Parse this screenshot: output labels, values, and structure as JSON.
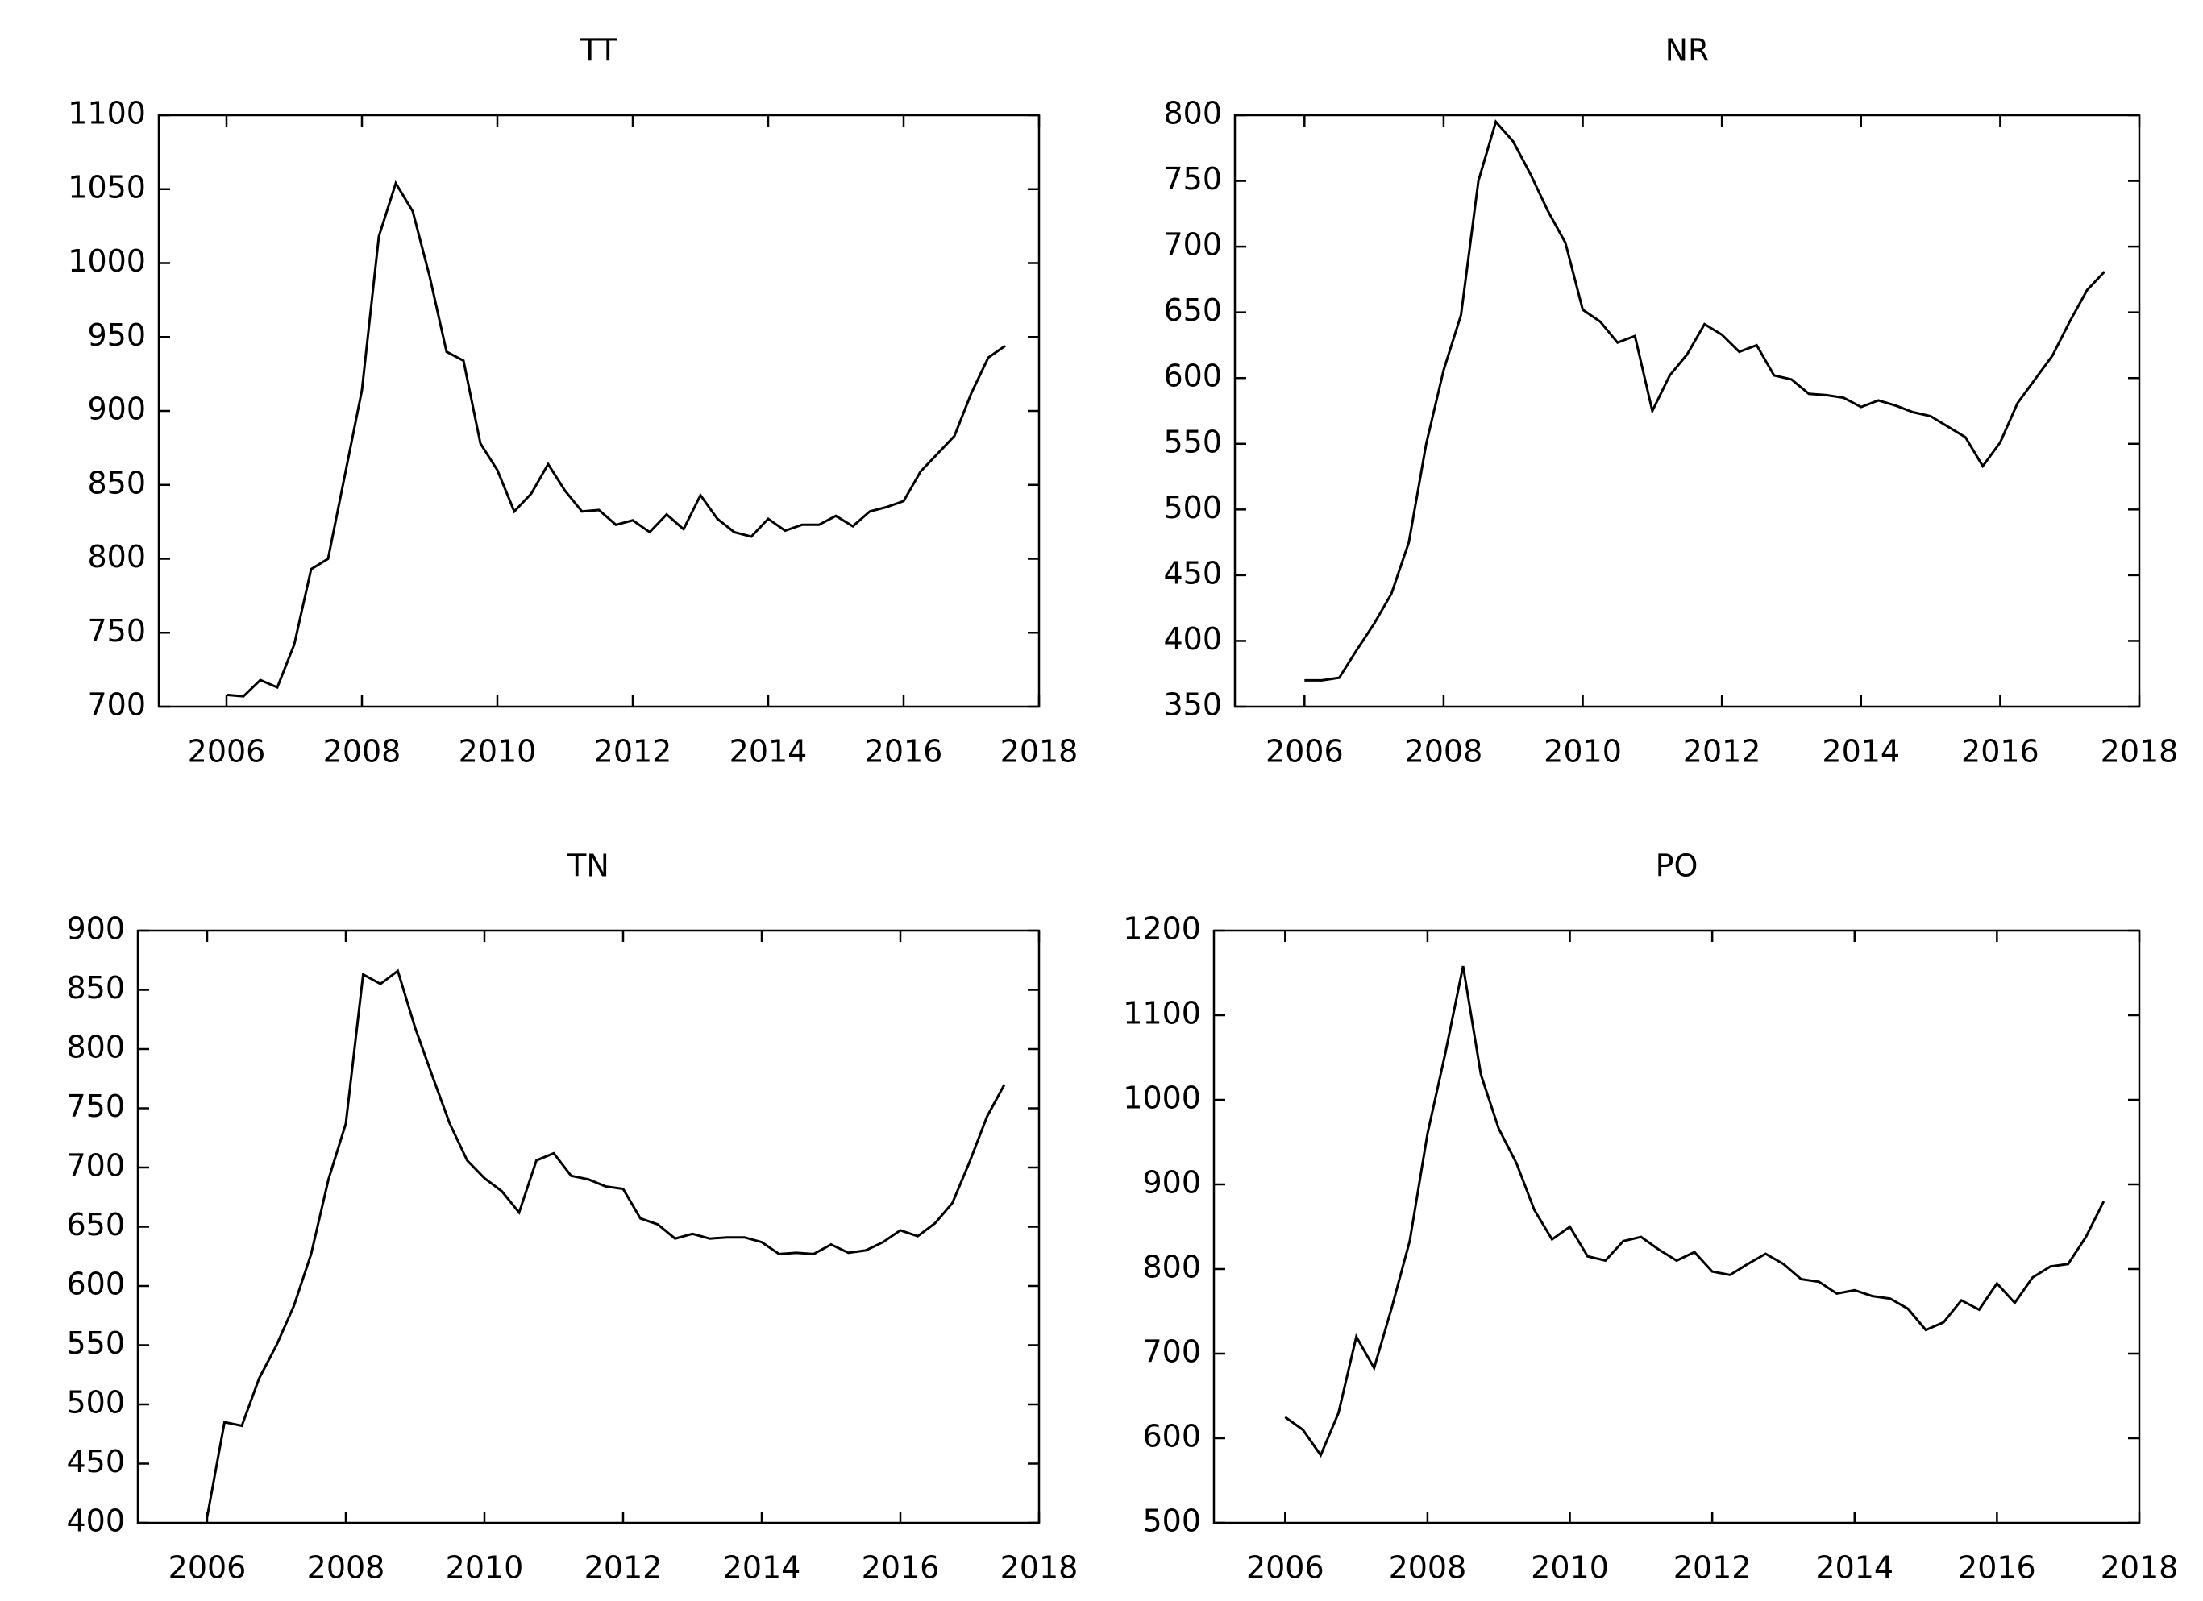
{
  "chart_data": [
    {
      "type": "line",
      "title": "TT",
      "xlim": [
        2005,
        2018
      ],
      "xticks": [
        2006,
        2008,
        2010,
        2012,
        2014,
        2016,
        2018
      ],
      "ylim": [
        700,
        1100
      ],
      "yticks": [
        700,
        750,
        800,
        850,
        900,
        950,
        1000,
        1050,
        1100
      ],
      "color": "#000000",
      "x": [
        2006,
        2006.25,
        2006.5,
        2006.75,
        2007,
        2007.25,
        2007.5,
        2007.75,
        2008,
        2008.25,
        2008.5,
        2008.75,
        2009,
        2009.25,
        2009.5,
        2009.75,
        2010,
        2010.25,
        2010.5,
        2010.75,
        2011,
        2011.25,
        2011.5,
        2011.75,
        2012,
        2012.25,
        2012.5,
        2012.75,
        2013,
        2013.25,
        2013.5,
        2013.75,
        2014,
        2014.25,
        2014.5,
        2014.75,
        2015,
        2015.25,
        2015.5,
        2015.75,
        2016,
        2016.25,
        2016.5,
        2016.75,
        2017,
        2017.25,
        2017.5
      ],
      "values": [
        708,
        707,
        718,
        713,
        742,
        793,
        800,
        857,
        914,
        1018,
        1054,
        1035,
        991,
        940,
        934,
        878,
        860,
        832,
        844,
        864,
        846,
        832,
        833,
        823,
        826,
        818,
        830,
        820,
        843,
        827,
        818,
        815,
        827,
        819,
        823,
        823,
        829,
        822,
        832,
        835,
        839,
        859,
        871,
        883,
        912,
        936,
        944
      ]
    },
    {
      "type": "line",
      "title": "NR",
      "xlim": [
        2005,
        2018
      ],
      "xticks": [
        2006,
        2008,
        2010,
        2012,
        2014,
        2016,
        2018
      ],
      "ylim": [
        350,
        800
      ],
      "yticks": [
        350,
        400,
        450,
        500,
        550,
        600,
        650,
        700,
        750,
        800
      ],
      "color": "#000000",
      "x": [
        2006,
        2006.25,
        2006.5,
        2006.75,
        2007,
        2007.25,
        2007.5,
        2007.75,
        2008,
        2008.25,
        2008.5,
        2008.75,
        2009,
        2009.25,
        2009.5,
        2009.75,
        2010,
        2010.25,
        2010.5,
        2010.75,
        2011,
        2011.25,
        2011.5,
        2011.75,
        2012,
        2012.25,
        2012.5,
        2012.75,
        2013,
        2013.25,
        2013.5,
        2013.75,
        2014,
        2014.25,
        2014.5,
        2014.75,
        2015,
        2015.25,
        2015.5,
        2015.75,
        2016,
        2016.25,
        2016.5,
        2016.75,
        2017,
        2017.25,
        2017.5
      ],
      "values": [
        370,
        370,
        372,
        393,
        413,
        436,
        475,
        550,
        606,
        648,
        750,
        795,
        780,
        755,
        727,
        703,
        652,
        643,
        627,
        632,
        575,
        602,
        618,
        641,
        633,
        620,
        625,
        602,
        599,
        588,
        587,
        585,
        578,
        583,
        579,
        574,
        571,
        563,
        555,
        533,
        551,
        581,
        599,
        617,
        643,
        667,
        681
      ]
    },
    {
      "type": "line",
      "title": "TN",
      "xlim": [
        2005,
        2018
      ],
      "xticks": [
        2006,
        2008,
        2010,
        2012,
        2014,
        2016,
        2018
      ],
      "ylim": [
        400,
        900
      ],
      "yticks": [
        400,
        450,
        500,
        550,
        600,
        650,
        700,
        750,
        800,
        850,
        900
      ],
      "color": "#000000",
      "x": [
        2006,
        2006.25,
        2006.5,
        2006.75,
        2007,
        2007.25,
        2007.5,
        2007.75,
        2008,
        2008.25,
        2008.5,
        2008.75,
        2009,
        2009.25,
        2009.5,
        2009.75,
        2010,
        2010.25,
        2010.5,
        2010.75,
        2011,
        2011.25,
        2011.5,
        2011.75,
        2012,
        2012.25,
        2012.5,
        2012.75,
        2013,
        2013.25,
        2013.5,
        2013.75,
        2014,
        2014.25,
        2014.5,
        2014.75,
        2015,
        2015.25,
        2015.5,
        2015.75,
        2016,
        2016.25,
        2016.5,
        2016.75,
        2017,
        2017.25,
        2017.5
      ],
      "values": [
        405,
        485,
        482,
        522,
        550,
        583,
        627,
        690,
        737,
        863,
        855,
        866,
        818,
        777,
        737,
        706,
        691,
        680,
        662,
        706,
        712,
        693,
        690,
        684,
        682,
        657,
        652,
        640,
        644,
        640,
        641,
        641,
        637,
        627,
        628,
        627,
        635,
        628,
        630,
        637,
        647,
        642,
        653,
        670,
        705,
        743,
        770
      ]
    },
    {
      "type": "line",
      "title": "PO",
      "xlim": [
        2005,
        2018
      ],
      "xticks": [
        2006,
        2008,
        2010,
        2012,
        2014,
        2016,
        2018
      ],
      "ylim": [
        500,
        1200
      ],
      "yticks": [
        500,
        600,
        700,
        800,
        900,
        1000,
        1100,
        1200
      ],
      "color": "#000000",
      "x": [
        2006,
        2006.25,
        2006.5,
        2006.75,
        2007,
        2007.25,
        2007.5,
        2007.75,
        2008,
        2008.25,
        2008.5,
        2008.75,
        2009,
        2009.25,
        2009.5,
        2009.75,
        2010,
        2010.25,
        2010.5,
        2010.75,
        2011,
        2011.25,
        2011.5,
        2011.75,
        2012,
        2012.25,
        2012.5,
        2012.75,
        2013,
        2013.25,
        2013.5,
        2013.75,
        2014,
        2014.25,
        2014.5,
        2014.75,
        2015,
        2015.25,
        2015.5,
        2015.75,
        2016,
        2016.25,
        2016.5,
        2016.75,
        2017,
        2017.25,
        2017.5
      ],
      "values": [
        625,
        610,
        580,
        630,
        720,
        683,
        755,
        833,
        960,
        1055,
        1158,
        1030,
        966,
        925,
        870,
        835,
        850,
        815,
        810,
        833,
        838,
        823,
        810,
        820,
        797,
        793,
        806,
        818,
        806,
        788,
        785,
        771,
        775,
        768,
        765,
        753,
        728,
        737,
        763,
        752,
        783,
        760,
        790,
        803,
        806,
        838,
        880
      ]
    }
  ]
}
